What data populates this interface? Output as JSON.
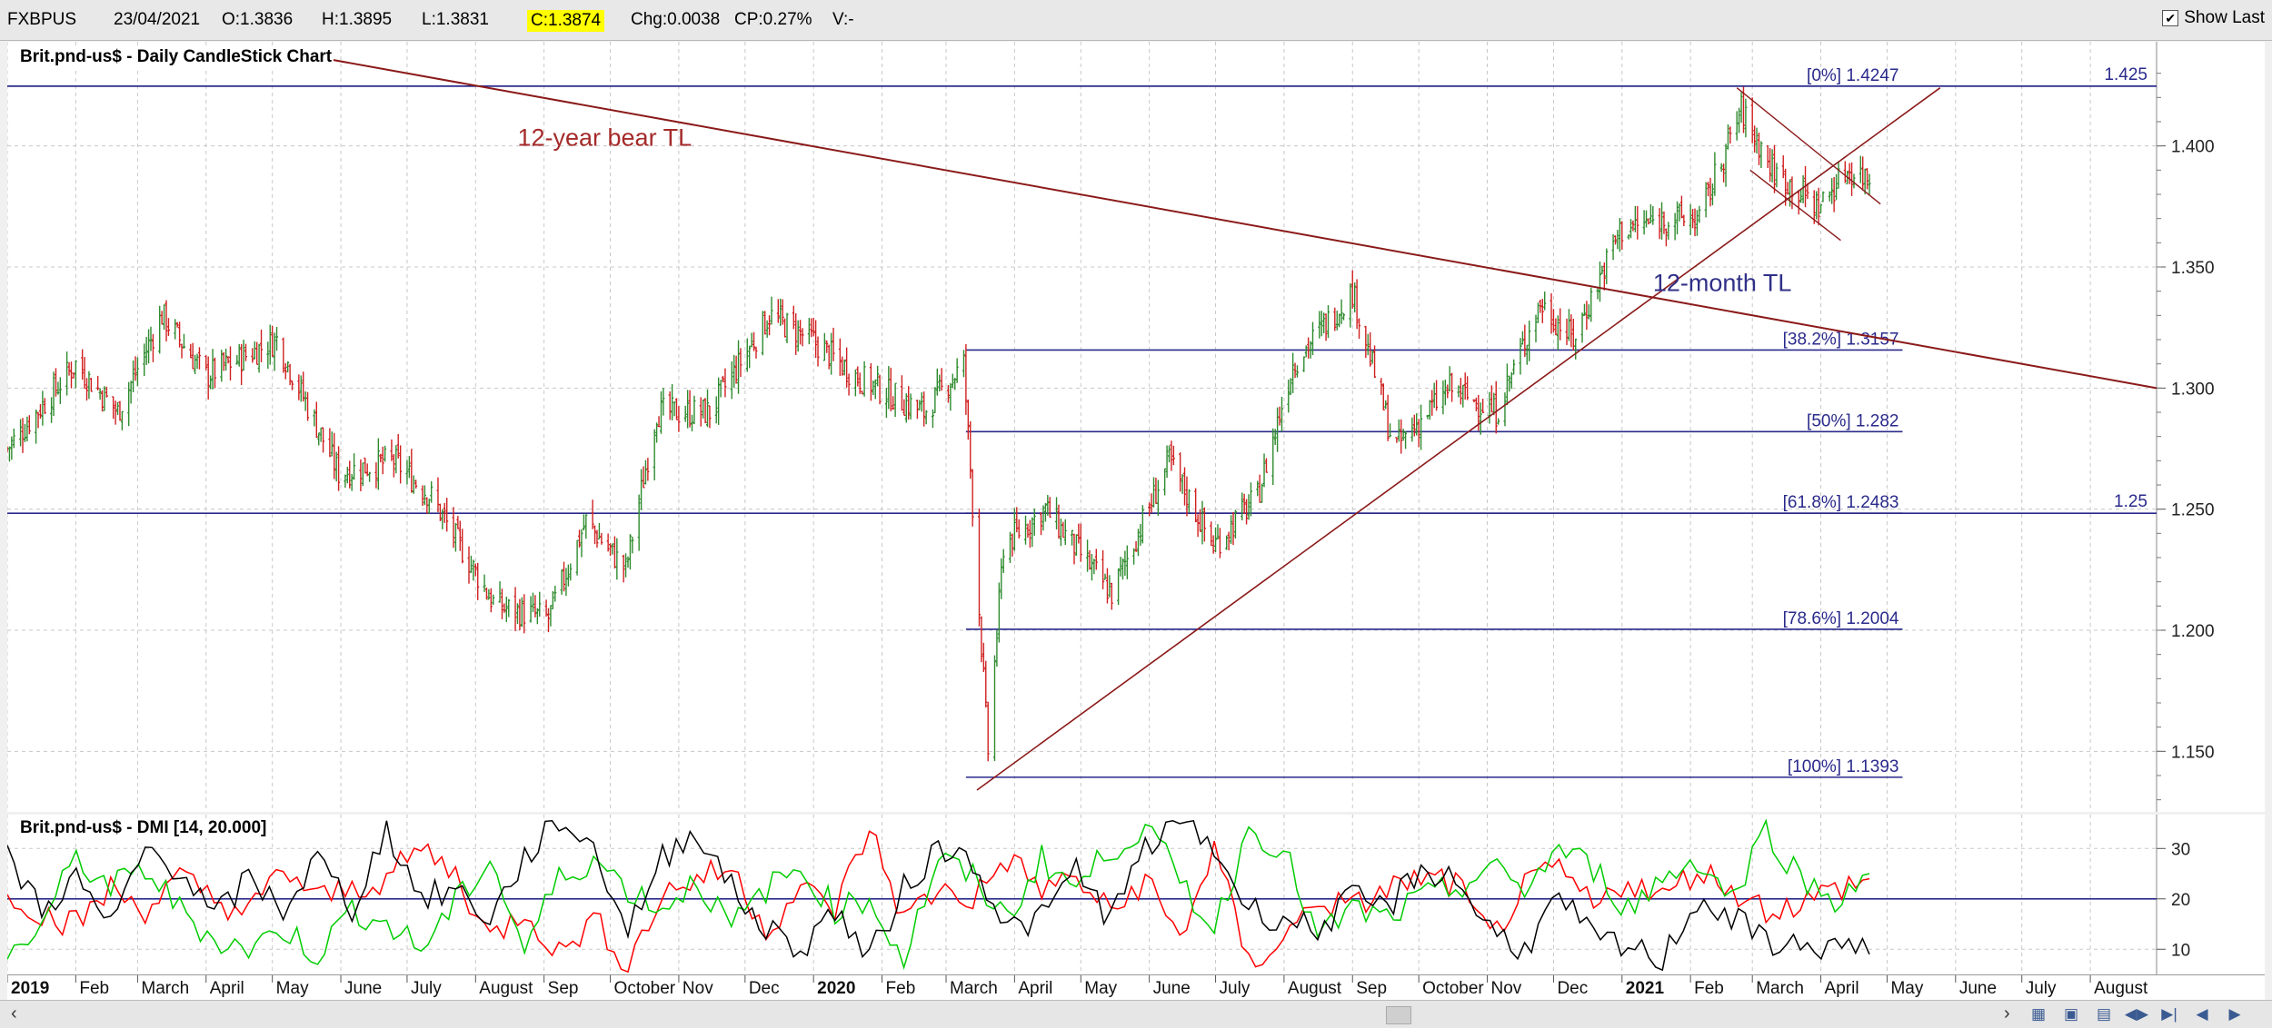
{
  "toolbar": {
    "symbol": "FXBPUS",
    "date": "23/04/2021",
    "open": "O:1.3836",
    "high": "H:1.3895",
    "low": "L:1.3831",
    "close": "C:1.3874",
    "change": "Chg:0.0038",
    "change_pct": "CP:0.27%",
    "volume": "V:-",
    "show_last_label": "Show Last",
    "show_last_checked": true
  },
  "chart_data": [
    {
      "type": "candlestick",
      "title": "Brit.pnd-us$ - Daily CandleStick Chart",
      "y_ticks": [
        "1.150",
        "1.200",
        "1.250",
        "1.300",
        "1.350",
        "1.400"
      ],
      "ylim": [
        1.125,
        1.44
      ],
      "x_labels": [
        "2019",
        "Feb",
        "March",
        "April",
        "May",
        "June",
        "July",
        "August",
        "Sep",
        "October",
        "Nov",
        "Dec",
        "2020",
        "Feb",
        "March",
        "April",
        "May",
        "June",
        "July",
        "August",
        "Sep",
        "October",
        "Nov",
        "Dec",
        "2021",
        "Feb",
        "March",
        "April",
        "May",
        "June",
        "July",
        "August"
      ],
      "bold_x_labels": [
        "2019",
        "2020",
        "2021"
      ],
      "x_range": [
        "2019-01-01",
        "2021-08-31"
      ],
      "approx_close_path": [
        {
          "date": "2019-01-01",
          "value": 1.275
        },
        {
          "date": "2019-02-01",
          "value": 1.31
        },
        {
          "date": "2019-02-20",
          "value": 1.29
        },
        {
          "date": "2019-03-12",
          "value": 1.33
        },
        {
          "date": "2019-04-01",
          "value": 1.305
        },
        {
          "date": "2019-05-03",
          "value": 1.32
        },
        {
          "date": "2019-05-31",
          "value": 1.265
        },
        {
          "date": "2019-06-25",
          "value": 1.27
        },
        {
          "date": "2019-07-12",
          "value": 1.255
        },
        {
          "date": "2019-08-10",
          "value": 1.21
        },
        {
          "date": "2019-09-03",
          "value": 1.205
        },
        {
          "date": "2019-09-20",
          "value": 1.245
        },
        {
          "date": "2019-10-08",
          "value": 1.225
        },
        {
          "date": "2019-10-22",
          "value": 1.29
        },
        {
          "date": "2019-11-15",
          "value": 1.29
        },
        {
          "date": "2019-12-12",
          "value": 1.33
        },
        {
          "date": "2019-12-31",
          "value": 1.32
        },
        {
          "date": "2020-01-20",
          "value": 1.305
        },
        {
          "date": "2020-02-20",
          "value": 1.29
        },
        {
          "date": "2020-03-09",
          "value": 1.31
        },
        {
          "date": "2020-03-20",
          "value": 1.15
        },
        {
          "date": "2020-03-27",
          "value": 1.235
        },
        {
          "date": "2020-04-15",
          "value": 1.25
        },
        {
          "date": "2020-05-15",
          "value": 1.215
        },
        {
          "date": "2020-06-10",
          "value": 1.27
        },
        {
          "date": "2020-06-30",
          "value": 1.235
        },
        {
          "date": "2020-07-20",
          "value": 1.255
        },
        {
          "date": "2020-08-05",
          "value": 1.31
        },
        {
          "date": "2020-09-01",
          "value": 1.34
        },
        {
          "date": "2020-09-20",
          "value": 1.275
        },
        {
          "date": "2020-10-15",
          "value": 1.3
        },
        {
          "date": "2020-11-05",
          "value": 1.29
        },
        {
          "date": "2020-11-25",
          "value": 1.335
        },
        {
          "date": "2020-12-10",
          "value": 1.32
        },
        {
          "date": "2020-12-31",
          "value": 1.365
        },
        {
          "date": "2021-01-20",
          "value": 1.37
        },
        {
          "date": "2021-02-05",
          "value": 1.37
        },
        {
          "date": "2021-02-24",
          "value": 1.415
        },
        {
          "date": "2021-03-10",
          "value": 1.39
        },
        {
          "date": "2021-03-31",
          "value": 1.375
        },
        {
          "date": "2021-04-13",
          "value": 1.39
        },
        {
          "date": "2021-04-23",
          "value": 1.387
        }
      ],
      "fib_levels": [
        {
          "label": "[0%] 1.4247",
          "value": 1.4247
        },
        {
          "label": "[38.2%] 1.3157",
          "value": 1.3157
        },
        {
          "label": "[50%] 1.282",
          "value": 1.282
        },
        {
          "label": "[61.8%] 1.2483",
          "value": 1.2483
        },
        {
          "label": "[78.6%] 1.2004",
          "value": 1.2004
        },
        {
          "label": "[100%] 1.1393",
          "value": 1.1393
        }
      ],
      "horizontal_lines": [
        {
          "label": "1.425",
          "value": 1.4247
        },
        {
          "label": "1.25",
          "value": 1.2483
        }
      ],
      "annotations": [
        {
          "text": "12-year bear TL",
          "color": "#a52a2a"
        },
        {
          "text": "12-month TL",
          "color": "#303088"
        }
      ],
      "trendlines": {
        "bear_tl": [
          {
            "date": "2019-05-01",
            "value": 1.44
          },
          {
            "date": "2021-08-31",
            "value": 1.3
          }
        ],
        "month_tl": [
          {
            "date": "2020-03-15",
            "value": 1.134
          },
          {
            "date": "2021-05-25",
            "value": 1.424
          }
        ],
        "channel_upper": [
          {
            "date": "2021-02-22",
            "value": 1.424
          },
          {
            "date": "2021-04-28",
            "value": 1.376
          }
        ],
        "channel_lower": [
          {
            "date": "2021-02-28",
            "value": 1.39
          },
          {
            "date": "2021-04-10",
            "value": 1.361
          }
        ]
      }
    },
    {
      "type": "line",
      "title": "Brit.pnd-us$ - DMI [14, 20.000]",
      "y_ticks": [
        "10",
        "20",
        "30"
      ],
      "ylim": [
        5,
        36
      ],
      "threshold": 20,
      "series": [
        {
          "color": "#ff0000",
          "values": [
            22,
            17,
            15,
            22,
            18,
            24,
            20,
            17,
            26,
            20,
            22,
            24,
            30,
            25,
            12,
            18,
            9,
            16,
            7,
            21,
            24,
            26,
            14,
            22,
            18,
            34,
            16,
            22,
            20,
            28,
            22,
            24,
            17,
            24,
            12,
            30,
            7,
            12,
            20,
            18,
            22,
            24,
            23,
            12,
            22,
            26,
            18,
            24,
            20,
            26,
            22,
            18,
            19,
            22,
            24
          ]
        },
        {
          "color": "#00cc00",
          "values": [
            8,
            15,
            28,
            22,
            26,
            18,
            12,
            10,
            14,
            9,
            18,
            15,
            10,
            19,
            28,
            10,
            24,
            28,
            22,
            18,
            24,
            14,
            22,
            26,
            18,
            20,
            8,
            28,
            24,
            16,
            28,
            22,
            30,
            34,
            24,
            14,
            34,
            30,
            12,
            18,
            16,
            20,
            22,
            26,
            22,
            30,
            26,
            18,
            24,
            28,
            20,
            34,
            24,
            20,
            25
          ]
        },
        {
          "color": "#000000",
          "values": [
            28,
            18,
            24,
            14,
            30,
            26,
            16,
            24,
            18,
            28,
            18,
            34,
            20,
            22,
            16,
            28,
            36,
            30,
            14,
            28,
            34,
            22,
            14,
            10,
            18,
            8,
            22,
            30,
            28,
            14,
            16,
            26,
            16,
            30,
            36,
            30,
            18,
            16,
            14,
            20,
            18,
            26,
            24,
            14,
            10,
            20,
            12,
            10,
            8,
            20,
            16,
            12,
            10,
            11,
            9
          ]
        }
      ]
    }
  ]
}
